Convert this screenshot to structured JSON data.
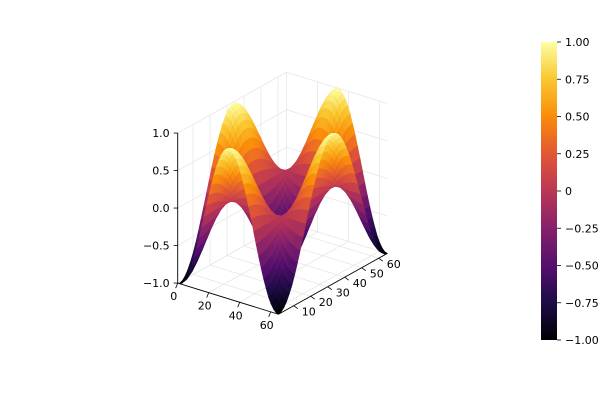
{
  "chart_data": {
    "type": "surface",
    "function": "sin(x*pi/32 + pi/2)... rendered as z = cos(2*pi*x/64) * sin(2*pi*y/64)-style saddle surface",
    "x_range": [
      1,
      65
    ],
    "y_range": [
      1,
      65
    ],
    "z_range": [
      -1,
      1
    ],
    "colormap": "inferno",
    "grid": true,
    "legend": "colorbar-right",
    "x_ticks": [
      "0",
      "20",
      "40",
      "60"
    ],
    "y_ticks": [
      "10",
      "20",
      "30",
      "40",
      "50",
      "60"
    ],
    "z_ticks": [
      "−1.0",
      "−0.5",
      "0.0",
      "0.5",
      "1.0"
    ],
    "colorbar_ticks": [
      "−1.00",
      "−0.75",
      "−0.50",
      "−0.25",
      "0",
      "0.25",
      "0.50",
      "0.75",
      "1.00"
    ],
    "colorbar_values": [
      -1.0,
      -0.75,
      -0.5,
      -0.25,
      0,
      0.25,
      0.5,
      0.75,
      1.0
    ],
    "x_tick_values": [
      0,
      20,
      40,
      60
    ],
    "y_tick_values": [
      10,
      20,
      30,
      40,
      50,
      60
    ],
    "z_tick_values": [
      -1.0,
      -0.5,
      0.0,
      0.5,
      1.0
    ],
    "colors": {
      "grid": "#e6e6e6",
      "axis": "#000000"
    }
  }
}
